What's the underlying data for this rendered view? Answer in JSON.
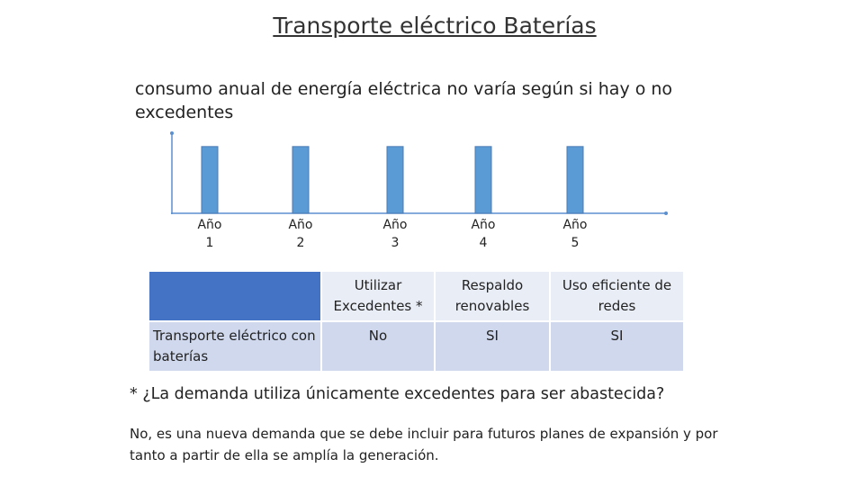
{
  "title": "Transporte eléctrico Baterías",
  "subtitle": "consumo anual  de energía eléctrica no varía según si hay o no excedentes",
  "chart_data": {
    "type": "bar",
    "categories": [
      "Año 1",
      "Año 2",
      "Año 3",
      "Año 4",
      "Año 5"
    ],
    "values": [
      1,
      1,
      1,
      1,
      1
    ],
    "color": "#5b9bd5",
    "ylim": [
      0,
      1.2
    ]
  },
  "table": {
    "header": [
      "Utilizar Excedentes *",
      "Respaldo renovables",
      "Uso eficiente de redes"
    ],
    "rows": [
      [
        "Transporte eléctrico con baterías",
        "No",
        "SI",
        "SI"
      ]
    ]
  },
  "question": "* ¿La demanda utiliza únicamente excedentes para ser abastecida?",
  "answer": "No, es una nueva demanda que se debe incluir para futuros planes de expansión y por tanto a partir de ella se amplía la generación."
}
